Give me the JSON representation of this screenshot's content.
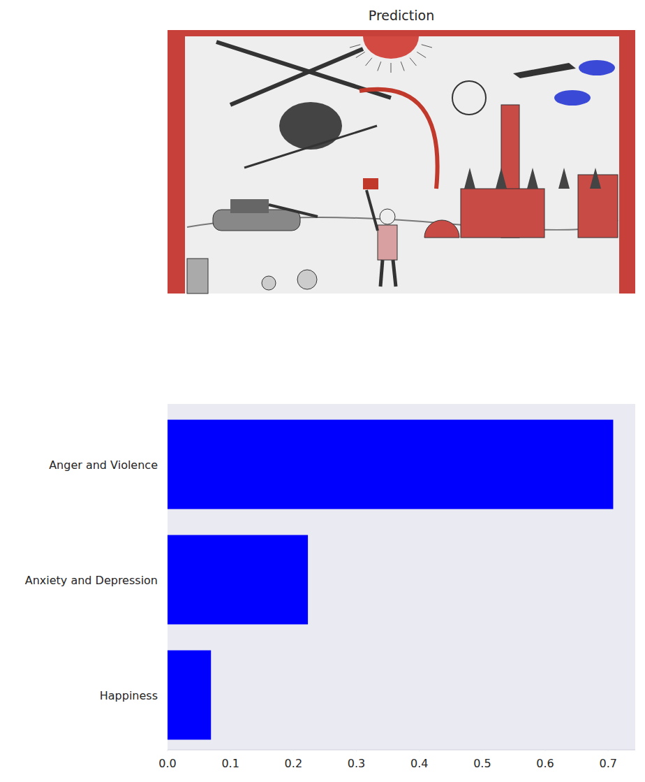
{
  "chart_data": {
    "type": "bar",
    "title": "Prediction",
    "orientation": "horizontal",
    "categories": [
      "Anger and Violence",
      "Anxiety and Depression",
      "Happiness"
    ],
    "values": [
      0.708,
      0.223,
      0.069
    ],
    "color": "#0000ff",
    "xlim": [
      0,
      0.743
    ],
    "xticks": [
      {
        "value": 0,
        "label": "0.0"
      },
      {
        "value": 0.1,
        "label": "0.1"
      },
      {
        "value": 0.2,
        "label": "0.2"
      },
      {
        "value": 0.3,
        "label": "0.3"
      },
      {
        "value": 0.4,
        "label": "0.4"
      },
      {
        "value": 0.5,
        "label": "0.5"
      },
      {
        "value": 0.6,
        "label": "0.6"
      },
      {
        "value": 0.7,
        "label": "0.7"
      }
    ],
    "grid": false
  }
}
